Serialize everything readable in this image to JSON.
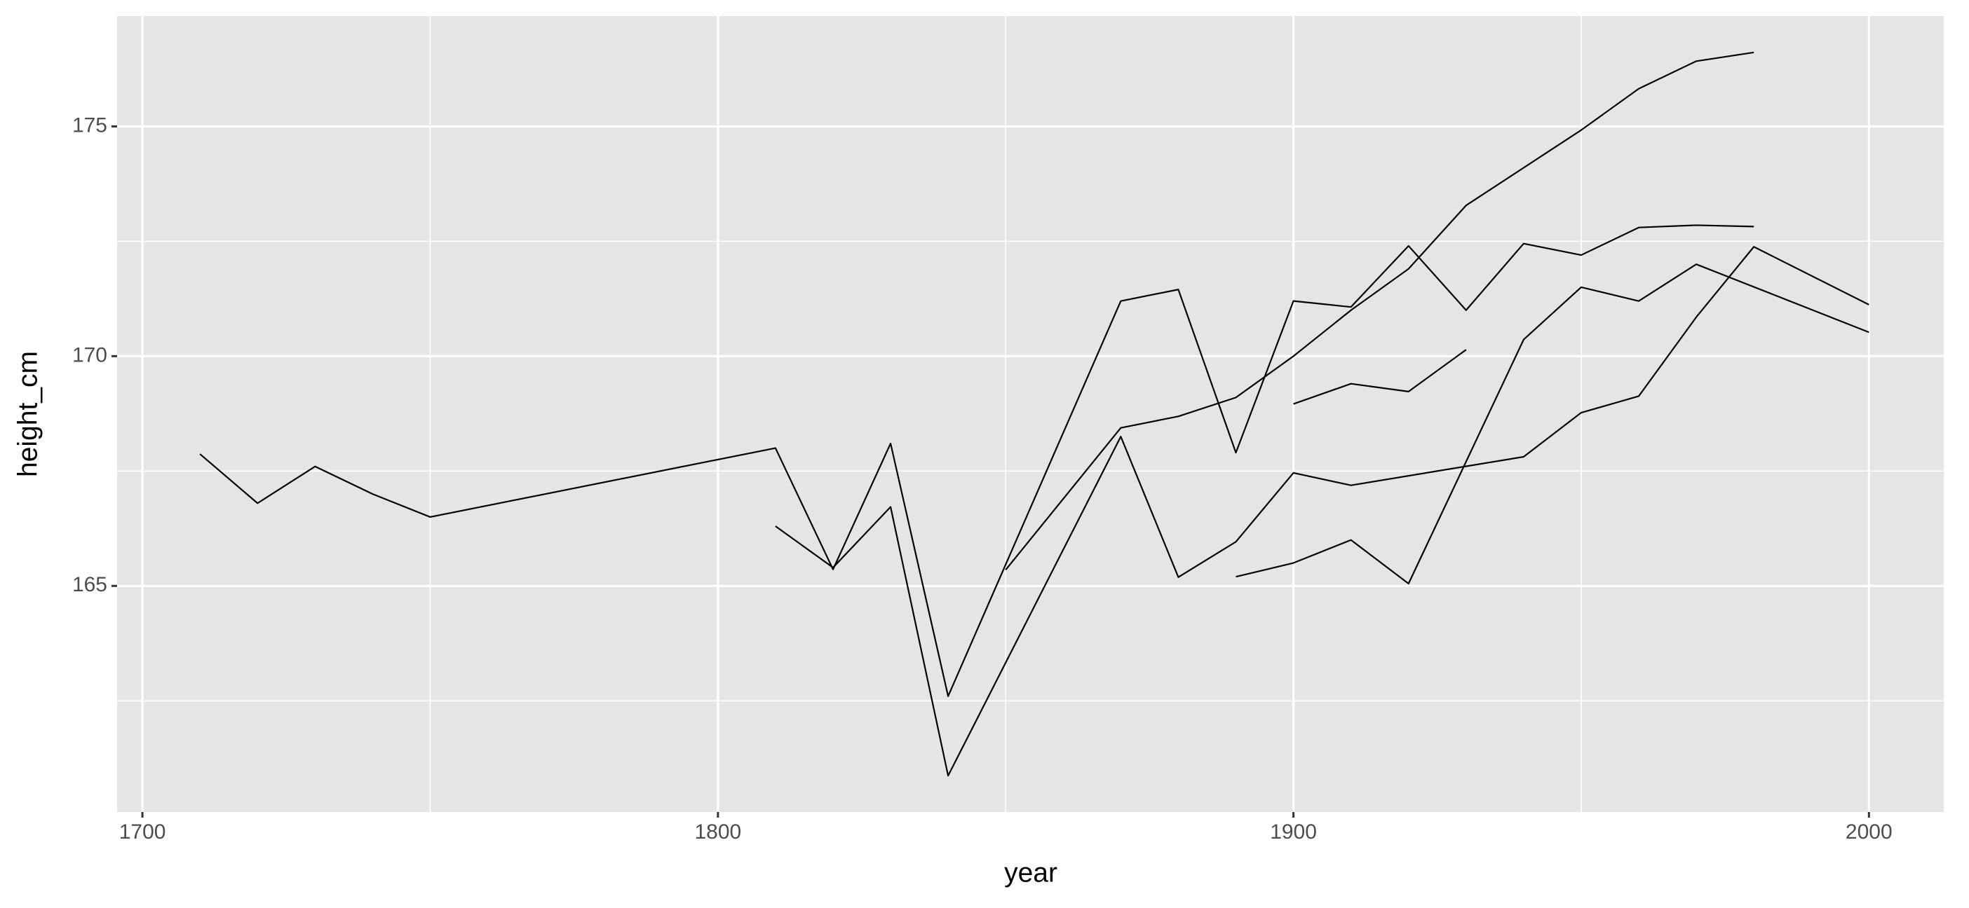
{
  "chart_data": {
    "type": "line",
    "x_label": "year",
    "y_label": "height_cm",
    "xlim": [
      1695.6,
      2013
    ],
    "ylim": [
      160.08,
      177.4
    ],
    "xticks": [
      1700,
      1800,
      1900,
      2000
    ],
    "yticks": [
      165,
      170,
      175
    ],
    "x_minor_ticks": [
      1750,
      1850,
      1950
    ],
    "y_minor_ticks": [
      162.5,
      167.5,
      172.5
    ],
    "grid": true,
    "series": [
      {
        "color": "#000000",
        "x": [
          1710,
          1720,
          1730,
          1740,
          1750,
          1810,
          1820,
          1830,
          1840,
          1870,
          1880,
          1890,
          1900,
          1910,
          1920,
          1930,
          1940,
          1950,
          1960,
          1970,
          1980
        ],
        "values": [
          167.87,
          166.8,
          167.6,
          167.0,
          166.5,
          168.0,
          165.36,
          168.1,
          162.6,
          171.2,
          171.45,
          167.9,
          171.2,
          171.07,
          172.4,
          171.0,
          172.45,
          172.2,
          172.8,
          172.85,
          172.82
        ]
      },
      {
        "color": "#000000",
        "x": [
          1810,
          1820,
          1830,
          1840,
          1870,
          1880,
          1890,
          1900,
          1910,
          1940,
          1950,
          1960,
          1970,
          1980,
          2000
        ],
        "values": [
          166.3,
          165.4,
          166.72,
          160.87,
          168.25,
          165.19,
          165.96,
          167.46,
          167.19,
          167.81,
          168.77,
          169.13,
          170.85,
          172.38,
          171.12
        ]
      },
      {
        "color": "#000000",
        "x": [
          1850,
          1870,
          1880,
          1890,
          1900,
          1910,
          1920,
          1930,
          1940,
          1950,
          1960,
          1970,
          1980
        ],
        "values": [
          165.35,
          168.44,
          168.69,
          169.1,
          170.0,
          171.0,
          171.9,
          173.28,
          174.1,
          174.92,
          175.82,
          176.42,
          176.61
        ]
      },
      {
        "color": "#000000",
        "x": [
          1900,
          1910,
          1920,
          1930
        ],
        "values": [
          168.96,
          169.4,
          169.23,
          170.14
        ]
      },
      {
        "color": "#000000",
        "x": [
          1890,
          1900,
          1910,
          1920,
          1940,
          1950,
          1960,
          1970,
          2000
        ],
        "values": [
          165.2,
          165.5,
          166.0,
          165.05,
          170.36,
          171.5,
          171.2,
          172.0,
          170.52
        ]
      }
    ]
  }
}
